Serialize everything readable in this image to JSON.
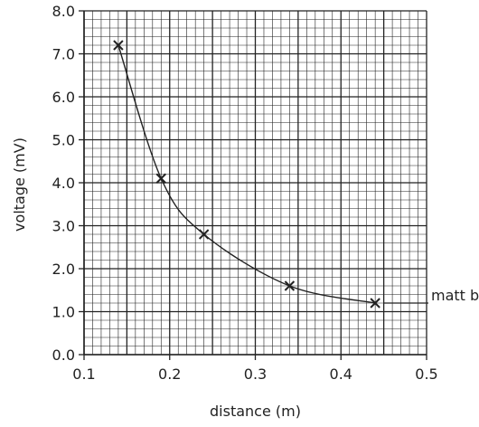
{
  "chart_data": {
    "type": "scatter",
    "title": "",
    "xlabel": "distance (m)",
    "ylabel": "voltage (mV)",
    "xlim": [
      0.1,
      0.5
    ],
    "ylim": [
      0.0,
      8.0
    ],
    "x_ticks": [
      0.1,
      0.2,
      0.3,
      0.4,
      0.5
    ],
    "x_tick_labels": [
      "0.1",
      "0.2",
      "0.3",
      "0.4",
      "0.5"
    ],
    "y_ticks": [
      0,
      1,
      2,
      3,
      4,
      5,
      6,
      7,
      8
    ],
    "y_tick_labels": [
      "0.0",
      "1.0",
      "2.0",
      "3.0",
      "4.0",
      "5.0",
      "6.0",
      "7.0",
      "8.0"
    ],
    "grid": true,
    "series": [
      {
        "marker": "x",
        "curve": "smooth",
        "x": [
          0.14,
          0.19,
          0.24,
          0.34,
          0.44
        ],
        "y": [
          7.2,
          4.1,
          2.8,
          1.6,
          1.2
        ]
      }
    ],
    "annotations": [
      {
        "text": "matt black",
        "x": 0.44,
        "y": 1.2
      }
    ],
    "color": "#222222"
  }
}
